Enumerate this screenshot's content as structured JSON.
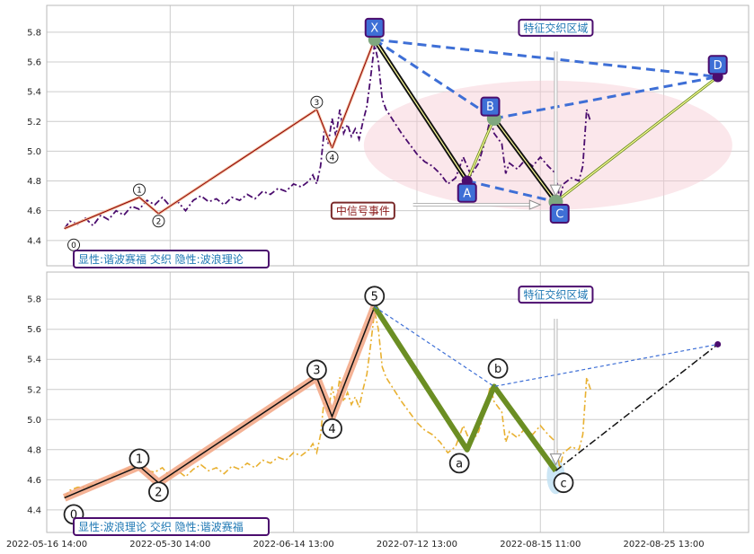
{
  "chart_data": [
    {
      "type": "line",
      "panel": "top",
      "ylim": [
        4.23,
        5.98
      ],
      "yticks": [
        4.4,
        4.6,
        4.8,
        5.0,
        5.2,
        5.4,
        5.6,
        5.8
      ],
      "grid": true,
      "price_series": {
        "style": "dash-dot",
        "color": "#4b0d6e",
        "points": [
          [
            0.3,
            4.48
          ],
          [
            1,
            4.53
          ],
          [
            2,
            4.51
          ],
          [
            3,
            4.55
          ],
          [
            4,
            4.5
          ],
          [
            5,
            4.57
          ],
          [
            6,
            4.54
          ],
          [
            7,
            4.6
          ],
          [
            8,
            4.57
          ],
          [
            9,
            4.63
          ],
          [
            10,
            4.61
          ],
          [
            11,
            4.67
          ],
          [
            12,
            4.64
          ],
          [
            13,
            4.69
          ],
          [
            14,
            4.63
          ],
          [
            15,
            4.66
          ],
          [
            16,
            4.6
          ],
          [
            17,
            4.67
          ],
          [
            18,
            4.7
          ],
          [
            19,
            4.66
          ],
          [
            20,
            4.68
          ],
          [
            21,
            4.64
          ],
          [
            22,
            4.69
          ],
          [
            23,
            4.67
          ],
          [
            24,
            4.71
          ],
          [
            25,
            4.68
          ],
          [
            26,
            4.73
          ],
          [
            27,
            4.71
          ],
          [
            28,
            4.75
          ],
          [
            29,
            4.73
          ],
          [
            30,
            4.78
          ],
          [
            31,
            4.76
          ],
          [
            32,
            4.8
          ],
          [
            32.5,
            4.84
          ],
          [
            33,
            4.78
          ],
          [
            33.5,
            4.9
          ],
          [
            34,
            5.15
          ],
          [
            34.5,
            5.05
          ],
          [
            35,
            5.22
          ],
          [
            35.5,
            5.1
          ],
          [
            36,
            5.28
          ],
          [
            36.5,
            5.12
          ],
          [
            37,
            5.18
          ],
          [
            37.5,
            5.1
          ],
          [
            38,
            5.15
          ],
          [
            38.5,
            5.08
          ],
          [
            39,
            5.2
          ],
          [
            39.5,
            5.3
          ],
          [
            40,
            5.5
          ],
          [
            40.5,
            5.72
          ],
          [
            41,
            5.6
          ],
          [
            41.5,
            5.35
          ],
          [
            42,
            5.28
          ],
          [
            43,
            5.2
          ],
          [
            44,
            5.12
          ],
          [
            45,
            5.05
          ],
          [
            46,
            4.98
          ],
          [
            47,
            4.93
          ],
          [
            48,
            4.9
          ],
          [
            49,
            4.85
          ],
          [
            50,
            4.78
          ],
          [
            51,
            4.82
          ],
          [
            52,
            4.96
          ],
          [
            53,
            4.84
          ],
          [
            54,
            4.92
          ],
          [
            55,
            5.1
          ],
          [
            55.5,
            5.22
          ],
          [
            56,
            5.12
          ],
          [
            57,
            5.05
          ],
          [
            57.5,
            4.85
          ],
          [
            58,
            4.92
          ],
          [
            59,
            4.88
          ],
          [
            60,
            4.94
          ],
          [
            61,
            4.9
          ],
          [
            62,
            4.96
          ],
          [
            63,
            4.9
          ],
          [
            64,
            4.85
          ],
          [
            64.5,
            4.68
          ],
          [
            65,
            4.78
          ],
          [
            66,
            4.82
          ],
          [
            67,
            4.8
          ],
          [
            67.5,
            4.9
          ],
          [
            68,
            5.28
          ],
          [
            68.5,
            5.2
          ]
        ]
      },
      "wave_lines": [
        {
          "label": "0-1",
          "from": [
            0.3,
            4.48
          ],
          "to": [
            10,
            4.69
          ],
          "color": "#8b0000"
        },
        {
          "label": "1-2",
          "from": [
            10,
            4.69
          ],
          "to": [
            12.5,
            4.58
          ],
          "color": "#8b0000"
        },
        {
          "label": "2-3",
          "from": [
            12.5,
            4.58
          ],
          "to": [
            33,
            5.28
          ],
          "color": "#8b0000"
        },
        {
          "label": "3-4",
          "from": [
            33,
            5.28
          ],
          "to": [
            35,
            5.02
          ],
          "color": "#8b0000"
        },
        {
          "label": "4-5",
          "from": [
            35,
            5.02
          ],
          "to": [
            40.5,
            5.75
          ],
          "color": "#8b0000"
        }
      ],
      "wave_labels": [
        {
          "text": "0",
          "x": 1.5,
          "y": 4.37
        },
        {
          "text": "1",
          "x": 10,
          "y": 4.74
        },
        {
          "text": "2",
          "x": 12.5,
          "y": 4.53
        },
        {
          "text": "3",
          "x": 33,
          "y": 5.33
        },
        {
          "text": "4",
          "x": 35,
          "y": 4.96
        }
      ],
      "xabcd_points": [
        {
          "name": "X",
          "x": 40.5,
          "y": 5.75
        },
        {
          "name": "A",
          "x": 52.5,
          "y": 4.8
        },
        {
          "name": "B",
          "x": 56,
          "y": 5.22
        },
        {
          "name": "C",
          "x": 64,
          "y": 4.66
        },
        {
          "name": "D",
          "x": 85,
          "y": 5.5
        }
      ],
      "xabcd_tags": [
        {
          "text": "X",
          "x": 40.5,
          "y": 5.83
        },
        {
          "text": "A",
          "x": 52.5,
          "y": 4.72
        },
        {
          "text": "B",
          "x": 55.5,
          "y": 5.3
        },
        {
          "text": "C",
          "x": 64.5,
          "y": 4.58
        },
        {
          "text": "D",
          "x": 85,
          "y": 5.58
        }
      ],
      "annotations": {
        "feature_zone": "特征交织区域",
        "mid_signal": "中信号事件",
        "caption": "显性:谐波赛福 交织 隐性:波浪理论"
      },
      "ellipse_center": [
        63,
        5.04
      ],
      "arrow_x": 64,
      "arrow_from_y": 5.67,
      "arrow_to_y": 4.7,
      "mid_arrow_from": [
        45.5,
        4.64
      ],
      "mid_arrow_to": [
        62,
        4.64
      ],
      "mid_label_at": [
        39,
        4.6
      ],
      "zone_label_at": [
        64,
        5.83
      ]
    },
    {
      "type": "line",
      "panel": "bottom",
      "ylim": [
        4.25,
        5.98
      ],
      "yticks": [
        4.4,
        4.6,
        4.8,
        5.0,
        5.2,
        5.4,
        5.6,
        5.8
      ],
      "grid": true,
      "price_series": {
        "style": "dash-dot",
        "color": "#e8b030",
        "points": [
          [
            0.3,
            4.48
          ],
          [
            1,
            4.53
          ],
          [
            2,
            4.55
          ],
          [
            3,
            4.55
          ],
          [
            4,
            4.57
          ],
          [
            5,
            4.58
          ],
          [
            6,
            4.61
          ],
          [
            7,
            4.64
          ],
          [
            8,
            4.66
          ],
          [
            9,
            4.68
          ],
          [
            10,
            4.7
          ],
          [
            11,
            4.66
          ],
          [
            12,
            4.65
          ],
          [
            13,
            4.68
          ],
          [
            14,
            4.62
          ],
          [
            15,
            4.66
          ],
          [
            16,
            4.62
          ],
          [
            17,
            4.67
          ],
          [
            18,
            4.7
          ],
          [
            19,
            4.66
          ],
          [
            20,
            4.68
          ],
          [
            21,
            4.64
          ],
          [
            22,
            4.69
          ],
          [
            23,
            4.67
          ],
          [
            24,
            4.71
          ],
          [
            25,
            4.68
          ],
          [
            26,
            4.73
          ],
          [
            27,
            4.71
          ],
          [
            28,
            4.75
          ],
          [
            29,
            4.73
          ],
          [
            30,
            4.78
          ],
          [
            31,
            4.76
          ],
          [
            32,
            4.8
          ],
          [
            32.5,
            4.84
          ],
          [
            33,
            4.78
          ],
          [
            33.5,
            4.9
          ],
          [
            34,
            5.15
          ],
          [
            34.5,
            5.05
          ],
          [
            35,
            5.22
          ],
          [
            35.5,
            5.1
          ],
          [
            36,
            5.28
          ],
          [
            36.5,
            5.12
          ],
          [
            37,
            5.18
          ],
          [
            37.5,
            5.1
          ],
          [
            38,
            5.15
          ],
          [
            38.5,
            5.08
          ],
          [
            39,
            5.2
          ],
          [
            39.5,
            5.3
          ],
          [
            40,
            5.5
          ],
          [
            40.5,
            5.72
          ],
          [
            41,
            5.6
          ],
          [
            41.5,
            5.35
          ],
          [
            42,
            5.28
          ],
          [
            43,
            5.2
          ],
          [
            44,
            5.12
          ],
          [
            45,
            5.05
          ],
          [
            46,
            4.98
          ],
          [
            47,
            4.93
          ],
          [
            48,
            4.9
          ],
          [
            49,
            4.85
          ],
          [
            50,
            4.78
          ],
          [
            51,
            4.82
          ],
          [
            52,
            4.96
          ],
          [
            53,
            4.84
          ],
          [
            54,
            4.92
          ],
          [
            55,
            5.1
          ],
          [
            55.5,
            5.22
          ],
          [
            56,
            5.12
          ],
          [
            57,
            5.05
          ],
          [
            57.5,
            4.85
          ],
          [
            58,
            4.92
          ],
          [
            59,
            4.88
          ],
          [
            60,
            4.94
          ],
          [
            61,
            4.9
          ],
          [
            62,
            4.96
          ],
          [
            63,
            4.9
          ],
          [
            64,
            4.85
          ],
          [
            64.5,
            4.68
          ],
          [
            65,
            4.78
          ],
          [
            66,
            4.82
          ],
          [
            67,
            4.8
          ],
          [
            67.5,
            4.9
          ],
          [
            68,
            5.28
          ],
          [
            68.5,
            5.2
          ]
        ]
      },
      "wave_points": [
        {
          "name": "0",
          "x": 0.3,
          "y": 4.48
        },
        {
          "name": "1",
          "x": 10,
          "y": 4.69
        },
        {
          "name": "2",
          "x": 12.5,
          "y": 4.58
        },
        {
          "name": "3",
          "x": 33,
          "y": 5.28
        },
        {
          "name": "4",
          "x": 35,
          "y": 5.02
        },
        {
          "name": "5",
          "x": 40.5,
          "y": 5.75
        },
        {
          "name": "a",
          "x": 52.5,
          "y": 4.8
        },
        {
          "name": "b",
          "x": 56,
          "y": 5.22
        },
        {
          "name": "c",
          "x": 64,
          "y": 4.66
        }
      ],
      "wave_labels": [
        {
          "text": "0",
          "x": 1.5,
          "y": 4.37
        },
        {
          "text": "1",
          "x": 10,
          "y": 4.74
        },
        {
          "text": "2",
          "x": 12.5,
          "y": 4.52
        },
        {
          "text": "3",
          "x": 33,
          "y": 5.33
        },
        {
          "text": "4",
          "x": 35,
          "y": 4.94
        },
        {
          "text": "5",
          "x": 40.5,
          "y": 5.82
        },
        {
          "text": "a",
          "x": 51.5,
          "y": 4.71
        },
        {
          "text": "b",
          "x": 56.5,
          "y": 5.34
        },
        {
          "text": "c",
          "x": 65,
          "y": 4.58
        }
      ],
      "dashed_projection": [
        [
          40.5,
          5.75
        ],
        [
          56,
          5.22
        ],
        [
          85,
          5.5
        ]
      ],
      "black_projection": [
        [
          64,
          4.66
        ],
        [
          85,
          5.5
        ]
      ],
      "end_point": {
        "x": 85,
        "y": 5.5
      },
      "annotations": {
        "feature_zone": "特征交织区域",
        "caption": "显性:波浪理论 交织 隐性:谐波赛福"
      },
      "arrow_x": 64,
      "arrow_from_y": 5.67,
      "arrow_to_y": 4.7,
      "zone_label_at": [
        64,
        5.83
      ]
    }
  ],
  "x_axis": {
    "range": [
      -2,
      89
    ],
    "ticks": [
      {
        "x": -2,
        "label": "2022-05-16 14:00"
      },
      {
        "x": 14,
        "label": "2022-05-30 14:00"
      },
      {
        "x": 30,
        "label": "2022-06-14 13:00"
      },
      {
        "x": 46,
        "label": "2022-07-12 13:00"
      },
      {
        "x": 62,
        "label": "2022-08-15 11:00"
      },
      {
        "x": 78,
        "label": "2022-08-25 13:00"
      }
    ]
  }
}
